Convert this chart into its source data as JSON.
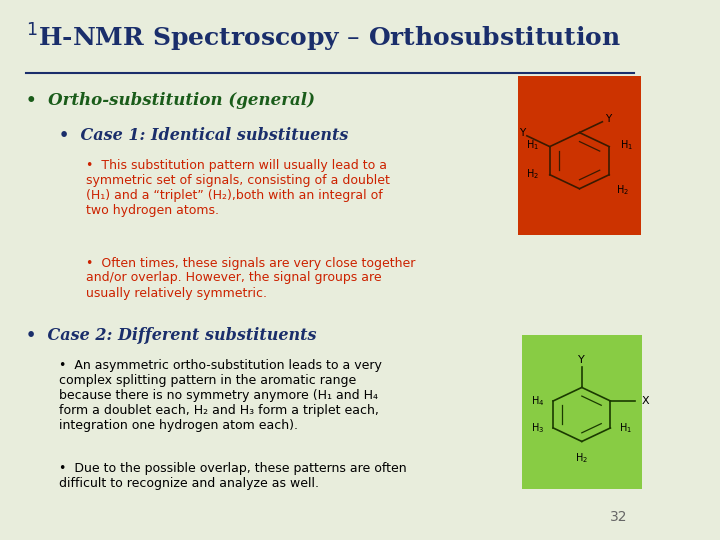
{
  "title": "$^1$H-NMR Spectroscopy – Orthosubstitution",
  "title_color": "#1a2e6b",
  "bg_color": "#e8eddc",
  "slide_number": "32",
  "bullet1": "Ortho-substitution (general)",
  "bullet1_color": "#1a5c1a",
  "bullet2": "Case 1: Identical substituents",
  "bullet2_color": "#1a2e6b",
  "bullet3_color": "#cc2200",
  "bullet3a": "This substitution pattern will usually lead to a\nsymmetric set of signals, consisting of a doublet\n(H₁) and a “triplet” (H₂),both with an integral of\ntwo hydrogen atoms.",
  "bullet3b": "Often times, these signals are very close together\nand/or overlap. However, the signal groups are\nusually relatively symmetric.",
  "bullet4_color": "#1a2e6b",
  "bullet4": "Case 2: Different substituents",
  "bullet5_color": "#000000",
  "bullet5a": "An asymmetric ortho-substitution leads to a very\ncomplex splitting pattern in the aromatic range\nbecause there is no symmetry anymore (H₁ and H₄\nform a doublet each, H₂ and H₃ form a triplet each,\nintegration one hydrogen atom each).",
  "bullet5b": "Due to the possible overlap, these patterns are often\ndifficult to recognize and analyze as well.",
  "box1_color": "#cc3300",
  "box2_color": "#88cc44",
  "line_color": "#1a2e6b"
}
